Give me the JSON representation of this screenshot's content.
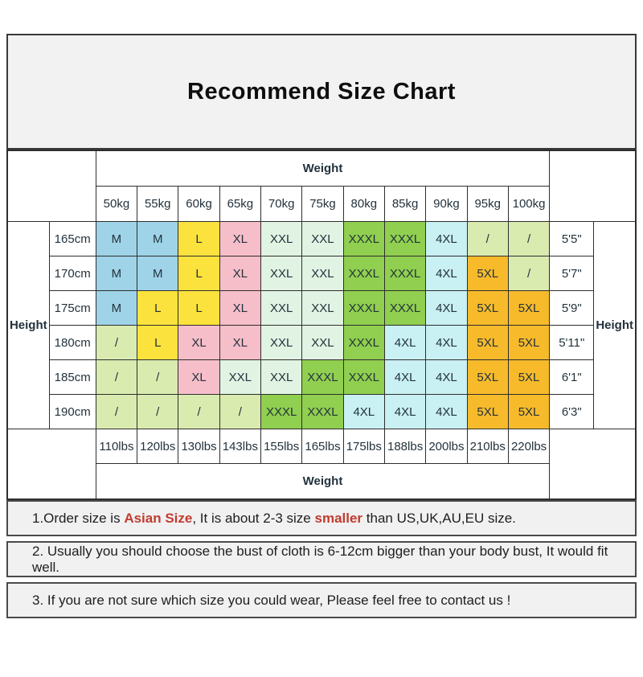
{
  "ui": {
    "title": "Recommend Size Chart",
    "weight_label_top": "Weight",
    "weight_label_bottom": "Weight",
    "height_label_left": "Height",
    "height_label_right": "Height",
    "size_colors": {
      "M": "#9FD3E8",
      "L": "#FBE23D",
      "XL": "#F6BEC9",
      "XXL": "#E1F3E3",
      "XXXL": "#90CF4F",
      "4XL": "#C9F0F3",
      "5XL": "#F6BA2B",
      "/": "#DAEBB0"
    },
    "notes": [
      {
        "prefix": "1.Order size is ",
        "red1": "Asian Size",
        "mid": ", It is about 2-3 size ",
        "red2": "smaller",
        "suffix": " than US,UK,AU,EU size."
      },
      {
        "text": "2. Usually you should choose the bust of cloth is 6-12cm bigger than your body bust, It would fit well."
      },
      {
        "text": "3. If you are not sure which size you could wear, Please feel free to contact us !"
      }
    ]
  },
  "chart_data": {
    "type": "table",
    "title": "Recommend Size Chart",
    "columns_weight_kg": [
      "50kg",
      "55kg",
      "60kg",
      "65kg",
      "70kg",
      "75kg",
      "80kg",
      "85kg",
      "90kg",
      "95kg",
      "100kg"
    ],
    "columns_weight_lbs": [
      "110lbs",
      "120lbs",
      "130lbs",
      "143lbs",
      "155lbs",
      "165lbs",
      "175lbs",
      "188lbs",
      "200lbs",
      "210lbs",
      "220lbs"
    ],
    "rows_height_cm": [
      "165cm",
      "170cm",
      "175cm",
      "180cm",
      "185cm",
      "190cm"
    ],
    "rows_height_ft": [
      "5'5\"",
      "5'7\"",
      "5'9\"",
      "5'11\"",
      "6'1\"",
      "6'3\""
    ],
    "matrix": [
      [
        "M",
        "M",
        "L",
        "XL",
        "XXL",
        "XXL",
        "XXXL",
        "XXXL",
        "4XL",
        "/",
        "/"
      ],
      [
        "M",
        "M",
        "L",
        "XL",
        "XXL",
        "XXL",
        "XXXL",
        "XXXL",
        "4XL",
        "5XL",
        "/"
      ],
      [
        "M",
        "L",
        "L",
        "XL",
        "XXL",
        "XXL",
        "XXXL",
        "XXXL",
        "4XL",
        "5XL",
        "5XL"
      ],
      [
        "/",
        "L",
        "XL",
        "XL",
        "XXL",
        "XXL",
        "XXXL",
        "4XL",
        "4XL",
        "5XL",
        "5XL"
      ],
      [
        "/",
        "/",
        "XL",
        "XXL",
        "XXL",
        "XXXL",
        "XXXL",
        "4XL",
        "4XL",
        "5XL",
        "5XL"
      ],
      [
        "/",
        "/",
        "/",
        "/",
        "XXXL",
        "XXXL",
        "4XL",
        "4XL",
        "4XL",
        "5XL",
        "5XL"
      ]
    ]
  }
}
